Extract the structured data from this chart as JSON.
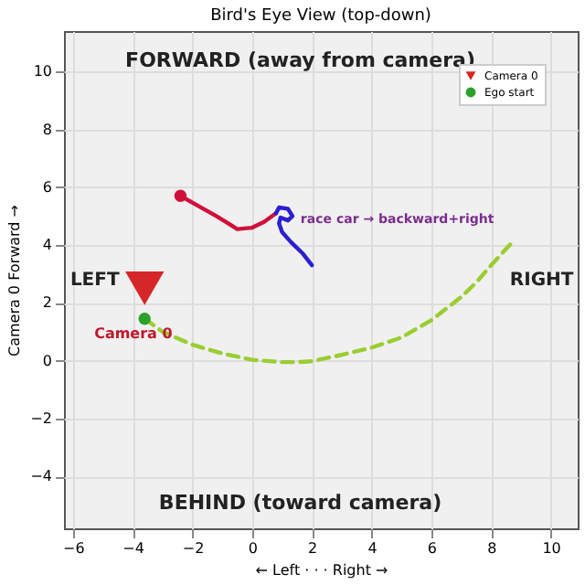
{
  "chart_data": {
    "type": "line",
    "title": "Bird's Eye View (top-down)",
    "xlabel": "← Left · · · Right →",
    "ylabel": "Camera 0 Forward →",
    "xlim": [
      -6.3,
      10.9
    ],
    "ylim": [
      -5.8,
      11.4
    ],
    "xticks": [
      -6,
      -4,
      -2,
      0,
      2,
      4,
      6,
      8,
      10
    ],
    "yticks": [
      -4,
      -2,
      0,
      2,
      4,
      6,
      8,
      10
    ],
    "grid": true,
    "legend": "top right",
    "series": [
      {
        "type": "line",
        "line_style": "dashed",
        "color": "#9acd32",
        "x": [
          -3.6,
          -3,
          -2,
          -1,
          0,
          1,
          1.5,
          2,
          3,
          4,
          5,
          6,
          6.5,
          7,
          7.5,
          8,
          8.8
        ],
        "values": [
          1.45,
          1.0,
          0.55,
          0.25,
          0.03,
          -0.05,
          -0.05,
          -0.02,
          0.2,
          0.45,
          0.8,
          1.4,
          1.8,
          2.2,
          2.7,
          3.3,
          4.2
        ]
      },
      {
        "type": "line",
        "line_style": "solid",
        "color": "#d0103a",
        "x": [
          -2.4,
          -1.8,
          -1.2,
          -0.8,
          -0.5,
          0,
          0.4,
          0.8
        ],
        "values": [
          5.7,
          5.35,
          5.0,
          4.75,
          4.55,
          4.6,
          4.8,
          5.1
        ]
      },
      {
        "type": "line",
        "line_style": "solid",
        "color": "#2b1fd0",
        "x": [
          0.8,
          0.9,
          1.2,
          1.35,
          1.2,
          0.95,
          0.9,
          1.0,
          1.3,
          1.7,
          2.0
        ],
        "values": [
          5.1,
          5.3,
          5.25,
          5.0,
          4.85,
          4.95,
          4.75,
          4.45,
          4.1,
          3.7,
          3.3
        ]
      },
      {
        "type": "scatter",
        "marker": "circle",
        "color": "#d0103a",
        "x": [
          -2.4
        ],
        "values": [
          5.7
        ]
      },
      {
        "type": "scatter",
        "marker": "triangle",
        "name": "Camera 0",
        "color": "#d62728",
        "x": [
          -3.6
        ],
        "values": [
          2.5
        ]
      },
      {
        "type": "scatter",
        "marker": "circle",
        "name": "Ego start",
        "color": "#2ca02c",
        "x": [
          -3.6
        ],
        "values": [
          1.45
        ]
      }
    ],
    "annotations": [
      "FORWARD (away from camera)",
      "BEHIND (toward camera)",
      "LEFT",
      "RIGHT",
      "Camera 0",
      {
        "text": "race car → backward+right",
        "x": 1.5,
        "y": 4.9
      }
    ]
  }
}
